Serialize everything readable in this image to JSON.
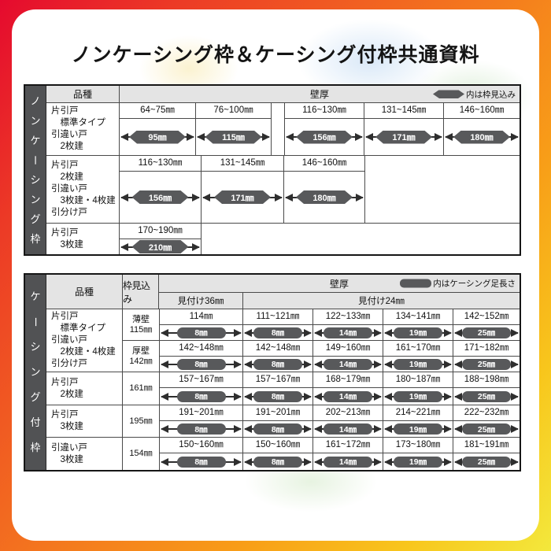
{
  "page": {
    "title": "ノンケーシング枠＆ケーシング付枠共通資料"
  },
  "colors": {
    "frame_gradient_start": "#e50a2e",
    "frame_gradient_mid": "#f3701f",
    "frame_gradient_end": "#f3e83c",
    "pill_gray": "#58595b",
    "sidebar_gray": "#515254",
    "header_bg": "#e4e4e4"
  },
  "tables": [
    {
      "sidebar_label": "ノンケーシング枠",
      "header": {
        "kind": "品種",
        "wall": "壁厚",
        "legend": "内は枠見込み"
      },
      "rows": [
        {
          "kind_lines": [
            "片引戸",
            "　標準タイプ",
            "引違い戸",
            "　2枚建"
          ],
          "cells": [
            {
              "range": "64~75㎜",
              "value": "95㎜"
            },
            {
              "range": "76~100㎜",
              "value": "115㎜"
            },
            {
              "spacer": true
            },
            {
              "range": "116~130㎜",
              "value": "156㎜"
            },
            {
              "range": "131~145㎜",
              "value": "171㎜"
            },
            {
              "range": "146~160㎜",
              "value": "180㎜"
            }
          ]
        },
        {
          "kind_lines": [
            "片引戸",
            "　2枚建",
            "引違い戸",
            "　3枚建・4枚建",
            "引分け戸"
          ],
          "cells": [
            {
              "range": "116~130㎜",
              "value": "156㎜"
            },
            {
              "range": "131~145㎜",
              "value": "171㎜"
            },
            {
              "range": "146~160㎜",
              "value": "180㎜"
            },
            {
              "empty": true
            }
          ]
        },
        {
          "kind_lines": [
            "片引戸",
            "　3枚建"
          ],
          "cells": [
            {
              "range": "170~190㎜",
              "value": "210㎜"
            },
            {
              "empty": true
            }
          ]
        }
      ]
    },
    {
      "sidebar_label": "ケーシング付枠",
      "header": {
        "kind": "品種",
        "frame_depth": "枠見込み",
        "wall": "壁厚",
        "legend": "内はケーシング足長さ",
        "sub1": "見付け36㎜",
        "sub2": "見付け24㎜"
      },
      "groups": [
        {
          "kind_lines": [
            "片引戸",
            "　標準タイプ",
            "引違い戸",
            "　2枚建・4枚建",
            "引分け戸"
          ],
          "subrows": [
            {
              "frame_lines": [
                "薄壁",
                "115㎜"
              ],
              "cells": [
                {
                  "range": "114㎜",
                  "value": "8㎜"
                },
                {
                  "range": "111~121㎜",
                  "value": "8㎜"
                },
                {
                  "range": "122~133㎜",
                  "value": "14㎜"
                },
                {
                  "range": "134~141㎜",
                  "value": "19㎜"
                },
                {
                  "range": "142~152㎜",
                  "value": "25㎜"
                }
              ]
            },
            {
              "frame_lines": [
                "厚壁",
                "142㎜"
              ],
              "cells": [
                {
                  "range": "142~148㎜",
                  "value": "8㎜"
                },
                {
                  "range": "142~148㎜",
                  "value": "8㎜"
                },
                {
                  "range": "149~160㎜",
                  "value": "14㎜"
                },
                {
                  "range": "161~170㎜",
                  "value": "19㎜"
                },
                {
                  "range": "171~182㎜",
                  "value": "25㎜"
                }
              ]
            }
          ]
        },
        {
          "kind_lines": [
            "片引戸",
            "　2枚建"
          ],
          "subrows": [
            {
              "frame_lines": [
                "161㎜"
              ],
              "cells": [
                {
                  "range": "157~167㎜",
                  "value": "8㎜"
                },
                {
                  "range": "157~167㎜",
                  "value": "8㎜"
                },
                {
                  "range": "168~179㎜",
                  "value": "14㎜"
                },
                {
                  "range": "180~187㎜",
                  "value": "19㎜"
                },
                {
                  "range": "188~198㎜",
                  "value": "25㎜"
                }
              ]
            }
          ]
        },
        {
          "kind_lines": [
            "片引戸",
            "　3枚建"
          ],
          "subrows": [
            {
              "frame_lines": [
                "195㎜"
              ],
              "cells": [
                {
                  "range": "191~201㎜",
                  "value": "8㎜"
                },
                {
                  "range": "191~201㎜",
                  "value": "8㎜"
                },
                {
                  "range": "202~213㎜",
                  "value": "14㎜"
                },
                {
                  "range": "214~221㎜",
                  "value": "19㎜"
                },
                {
                  "range": "222~232㎜",
                  "value": "25㎜"
                }
              ]
            }
          ]
        },
        {
          "kind_lines": [
            "引違い戸",
            "　3枚建"
          ],
          "subrows": [
            {
              "frame_lines": [
                "154㎜"
              ],
              "cells": [
                {
                  "range": "150~160㎜",
                  "value": "8㎜"
                },
                {
                  "range": "150~160㎜",
                  "value": "8㎜"
                },
                {
                  "range": "161~172㎜",
                  "value": "14㎜"
                },
                {
                  "range": "173~180㎜",
                  "value": "19㎜"
                },
                {
                  "range": "181~191㎜",
                  "value": "25㎜"
                }
              ]
            }
          ]
        }
      ]
    }
  ]
}
